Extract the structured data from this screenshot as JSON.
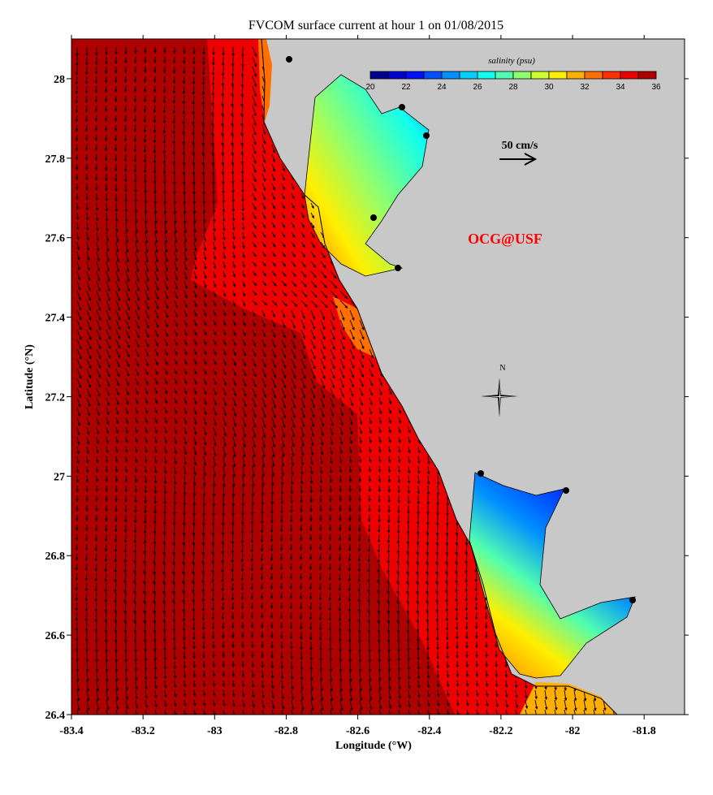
{
  "title": "FVCOM surface current at hour 1 on 01/08/2015",
  "x_axis": {
    "label": "Longitude (°W)",
    "range": [
      -83.4,
      -81.687
    ],
    "ticks": [
      "-83.4",
      "-83.2",
      "-83",
      "-82.8",
      "-82.6",
      "-82.4",
      "-82.2",
      "-82",
      "-81.8"
    ]
  },
  "y_axis": {
    "label": "Latitude (°N)",
    "range": [
      26.4,
      28.1
    ],
    "ticks": [
      "26.4",
      "26.6",
      "26.8",
      "27",
      "27.2",
      "27.4",
      "27.6",
      "27.8",
      "28"
    ]
  },
  "colorbar": {
    "label": "salinity (psu)",
    "range": [
      20,
      36
    ],
    "tick_labels": [
      "20",
      "22",
      "24",
      "26",
      "28",
      "30",
      "32",
      "34",
      "36"
    ],
    "colors": [
      "#00008f",
      "#0000cf",
      "#0010ff",
      "#0050ff",
      "#0090ff",
      "#00d0ff",
      "#10ffef",
      "#50ffaf",
      "#90ff6f",
      "#cfff30",
      "#ffef00",
      "#ffaf00",
      "#ff7000",
      "#ff3000",
      "#ef0000",
      "#af0000"
    ]
  },
  "scale_arrow": {
    "label": "50 cm/s",
    "value_cm_s": 50
  },
  "watermark": "OCG@USF",
  "compass": {
    "label": "N"
  },
  "colors": {
    "land": "#c8c8c8",
    "offshore_salinity": "#af0000",
    "nearshore_salinity": "#ef0000",
    "watermark": "#ff0000"
  }
}
